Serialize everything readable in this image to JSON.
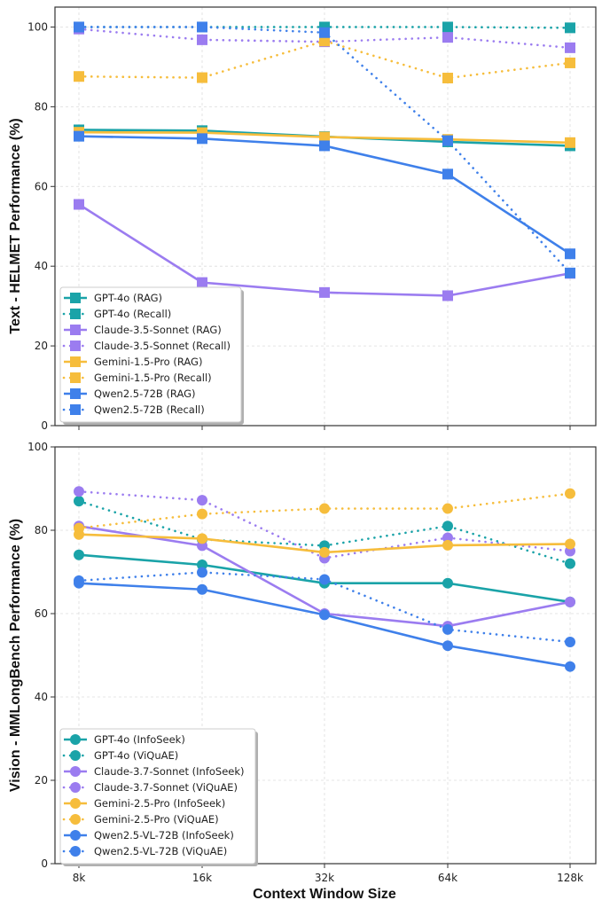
{
  "chart_data": [
    {
      "type": "line",
      "panel": "top",
      "title": "",
      "xlabel": "",
      "ylabel": "Text - HELMET Performance (%)",
      "categories": [
        "8k",
        "16k",
        "32k",
        "64k",
        "128k"
      ],
      "ylim": [
        0,
        105
      ],
      "yticks": [
        0,
        20,
        40,
        60,
        80,
        100
      ],
      "grid": true,
      "marker": "square",
      "legend_position": "lower-left",
      "series": [
        {
          "name": "GPT-4o (RAG)",
          "color": "#1aa3a8",
          "style": "solid",
          "values": [
            74.2,
            74.0,
            72.5,
            71.2,
            70.2
          ]
        },
        {
          "name": "GPT-4o (Recall)",
          "color": "#1aa3a8",
          "style": "dotted",
          "values": [
            100,
            100,
            100,
            100,
            99.8
          ]
        },
        {
          "name": "Claude-3.5-Sonnet (RAG)",
          "color": "#9b7cf0",
          "style": "solid",
          "values": [
            55.5,
            35.9,
            33.4,
            32.6,
            38.2
          ]
        },
        {
          "name": "Claude-3.5-Sonnet (Recall)",
          "color": "#9b7cf0",
          "style": "dotted",
          "values": [
            99.5,
            96.8,
            96.3,
            97.4,
            94.8
          ]
        },
        {
          "name": "Gemini-1.5-Pro (RAG)",
          "color": "#f6bd3c",
          "style": "solid",
          "values": [
            73.6,
            73.5,
            72.4,
            71.8,
            71.0
          ]
        },
        {
          "name": "Gemini-1.5-Pro (Recall)",
          "color": "#f6bd3c",
          "style": "dotted",
          "values": [
            87.6,
            87.3,
            96.5,
            87.2,
            91.0
          ]
        },
        {
          "name": "Qwen2.5-72B (RAG)",
          "color": "#3f80ea",
          "style": "solid",
          "values": [
            72.6,
            72.0,
            70.2,
            63.1,
            43.1
          ]
        },
        {
          "name": "Qwen2.5-72B (Recall)",
          "color": "#3f80ea",
          "style": "dotted",
          "values": [
            100,
            100,
            98.6,
            71.5,
            38.3
          ]
        }
      ]
    },
    {
      "type": "line",
      "panel": "bottom",
      "title": "",
      "xlabel": "Context Window Size",
      "ylabel": "Vision - MMLongBench Performance (%)",
      "categories": [
        "8k",
        "16k",
        "32k",
        "64k",
        "128k"
      ],
      "ylim": [
        0,
        100
      ],
      "yticks": [
        0,
        20,
        40,
        60,
        80,
        100
      ],
      "grid": true,
      "marker": "circle",
      "legend_position": "lower-left",
      "series": [
        {
          "name": "GPT-4o (InfoSeek)",
          "color": "#1aa3a8",
          "style": "solid",
          "values": [
            74.1,
            71.7,
            67.3,
            67.3,
            62.8
          ]
        },
        {
          "name": "GPT-4o (ViQuAE)",
          "color": "#1aa3a8",
          "style": "dotted",
          "values": [
            87.0,
            77.8,
            76.3,
            81.0,
            72.0
          ]
        },
        {
          "name": "Claude-3.7-Sonnet (InfoSeek)",
          "color": "#9b7cf0",
          "style": "solid",
          "values": [
            81.0,
            76.3,
            60.0,
            57.0,
            62.8
          ]
        },
        {
          "name": "Claude-3.7-Sonnet (ViQuAE)",
          "color": "#9b7cf0",
          "style": "dotted",
          "values": [
            89.3,
            87.2,
            73.3,
            78.2,
            75.0
          ]
        },
        {
          "name": "Gemini-2.5-Pro (InfoSeek)",
          "color": "#f6bd3c",
          "style": "solid",
          "values": [
            79.0,
            78.0,
            74.7,
            76.4,
            76.7
          ]
        },
        {
          "name": "Gemini-2.5-Pro (ViQuAE)",
          "color": "#f6bd3c",
          "style": "dotted",
          "values": [
            80.5,
            83.9,
            85.2,
            85.2,
            88.8
          ]
        },
        {
          "name": "Qwen2.5-VL-72B (InfoSeek)",
          "color": "#3f80ea",
          "style": "solid",
          "values": [
            67.3,
            65.8,
            59.7,
            52.3,
            47.3
          ]
        },
        {
          "name": "Qwen2.5-VL-72B (ViQuAE)",
          "color": "#3f80ea",
          "style": "dotted",
          "values": [
            67.9,
            69.9,
            68.2,
            56.2,
            53.2
          ]
        }
      ]
    }
  ]
}
